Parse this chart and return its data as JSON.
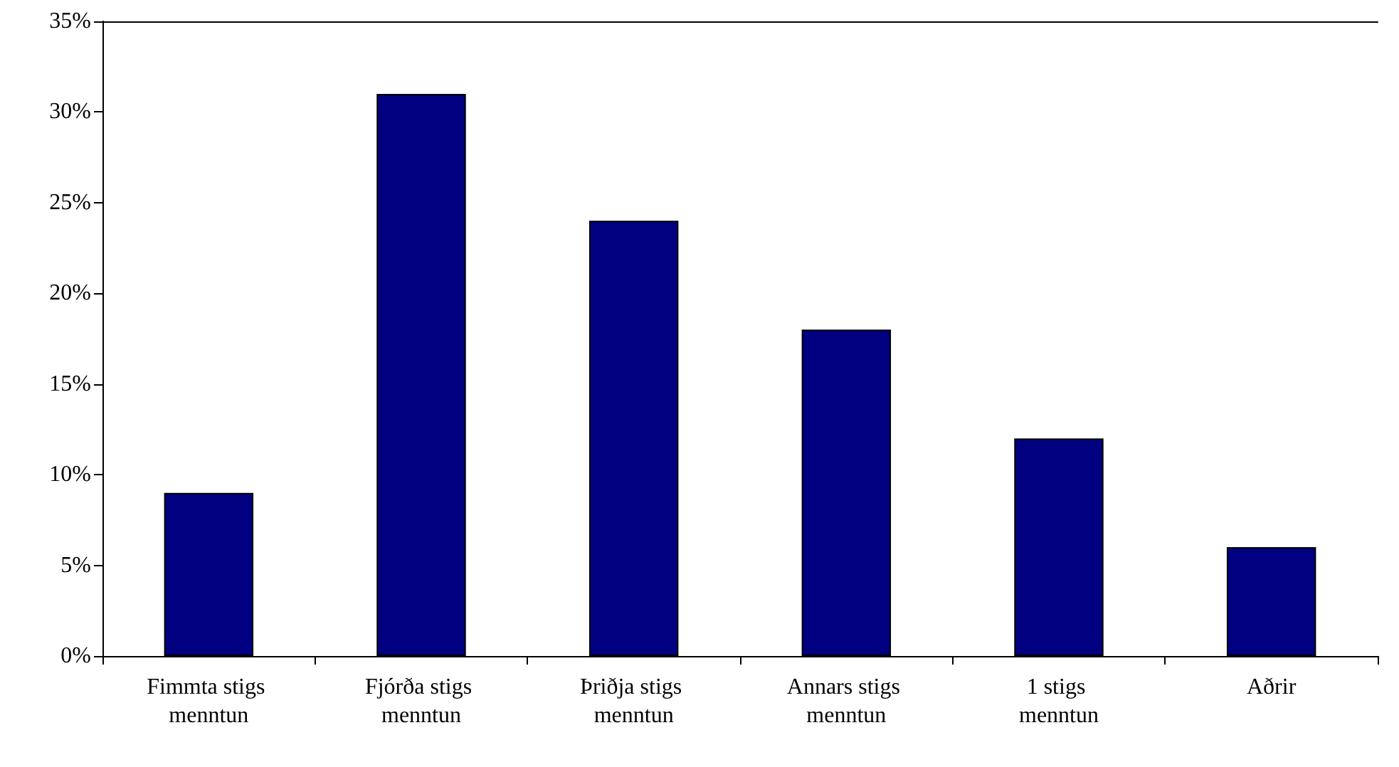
{
  "chart_data": {
    "type": "bar",
    "categories": [
      "Fimmta stigs menntun",
      "Fjórða stigs menntun",
      "Þriðja stigs menntun",
      "Annars stigs menntun",
      "1 stigs menntun",
      "Aðrir"
    ],
    "values": [
      9,
      31,
      24,
      18,
      12,
      6
    ],
    "color": "#000080",
    "ylim": [
      0,
      35
    ],
    "yticks": [
      {
        "value": 0,
        "label": "0%"
      },
      {
        "value": 5,
        "label": "5%"
      },
      {
        "value": 10,
        "label": "10%"
      },
      {
        "value": 15,
        "label": "15%"
      },
      {
        "value": 20,
        "label": "20%"
      },
      {
        "value": 25,
        "label": "25%"
      },
      {
        "value": 30,
        "label": "30%"
      },
      {
        "value": 35,
        "label": "35%"
      }
    ],
    "grid": false
  }
}
